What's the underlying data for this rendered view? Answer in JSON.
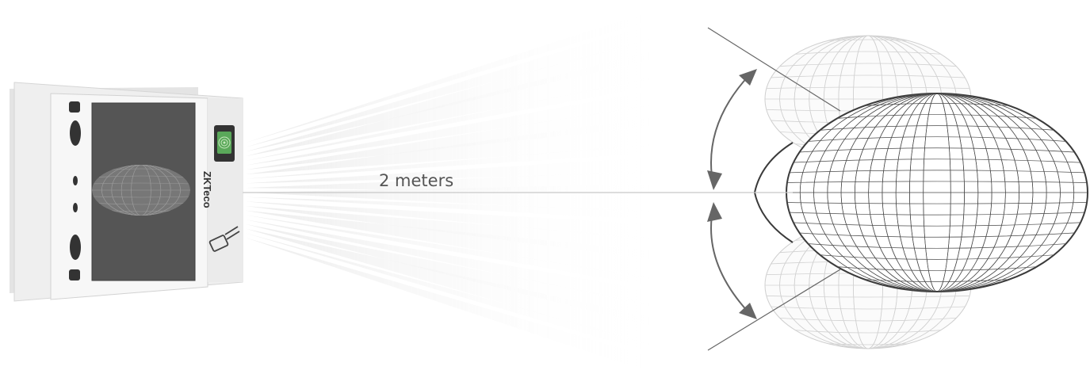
{
  "distance_label": "2 meters",
  "logo_text": "ZKTeco",
  "colors": {
    "device_body": "#f3f3f3",
    "device_bezel": "#d9d9d9",
    "screen": "#555555",
    "logo_accent": "#6cc04a",
    "center_line": "#c8c8c8",
    "arrow": "#666666",
    "mesh_dark": "#3a3a3a",
    "mesh_light": "#bdbdbd"
  },
  "icons": {
    "fingerprint_sensor": "fingerprint-icon",
    "card_reader": "card-swipe-icon",
    "angle_arrows": "curved-double-arrow-icon"
  }
}
